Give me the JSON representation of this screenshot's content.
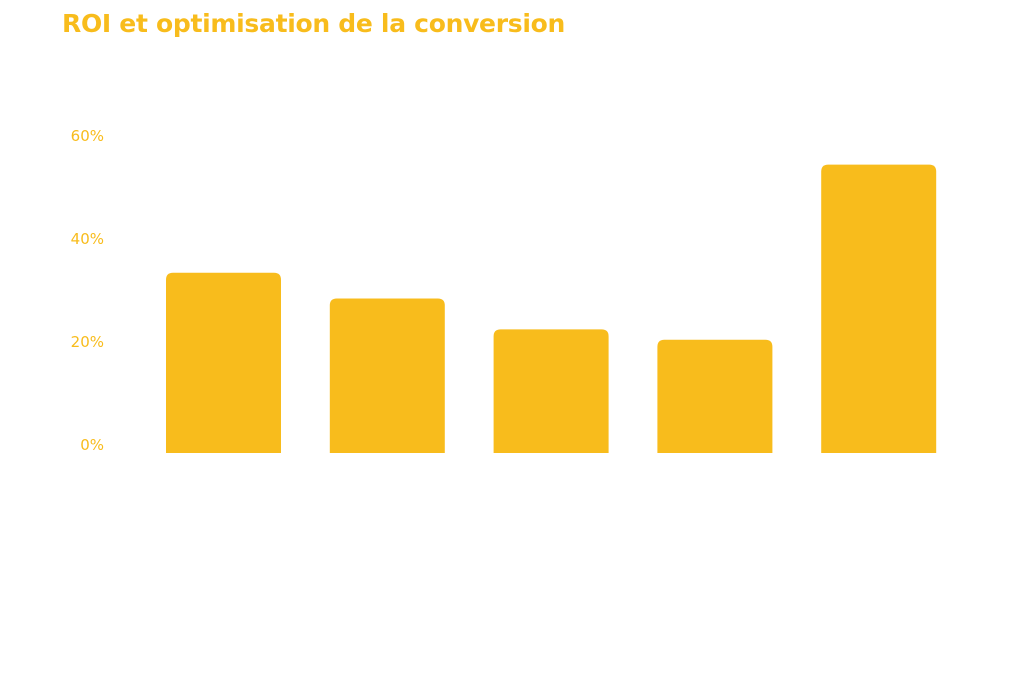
{
  "chart_data": {
    "type": "bar",
    "title": "ROI et optimisation de la conversion",
    "categories": [
      "",
      "",
      "",
      "",
      ""
    ],
    "values": [
      35,
      30,
      24,
      22,
      56
    ],
    "yticks": [
      0,
      20,
      40,
      60
    ],
    "ytick_labels": [
      "0%",
      "20%",
      "40%",
      "60%"
    ],
    "ylim": [
      0,
      60
    ],
    "xlabel": "",
    "ylabel": "",
    "grid": false,
    "colors": {
      "bar": "#f8bc1c",
      "tick_text": "#f8bc1c",
      "title": "#f8bc1c"
    }
  }
}
